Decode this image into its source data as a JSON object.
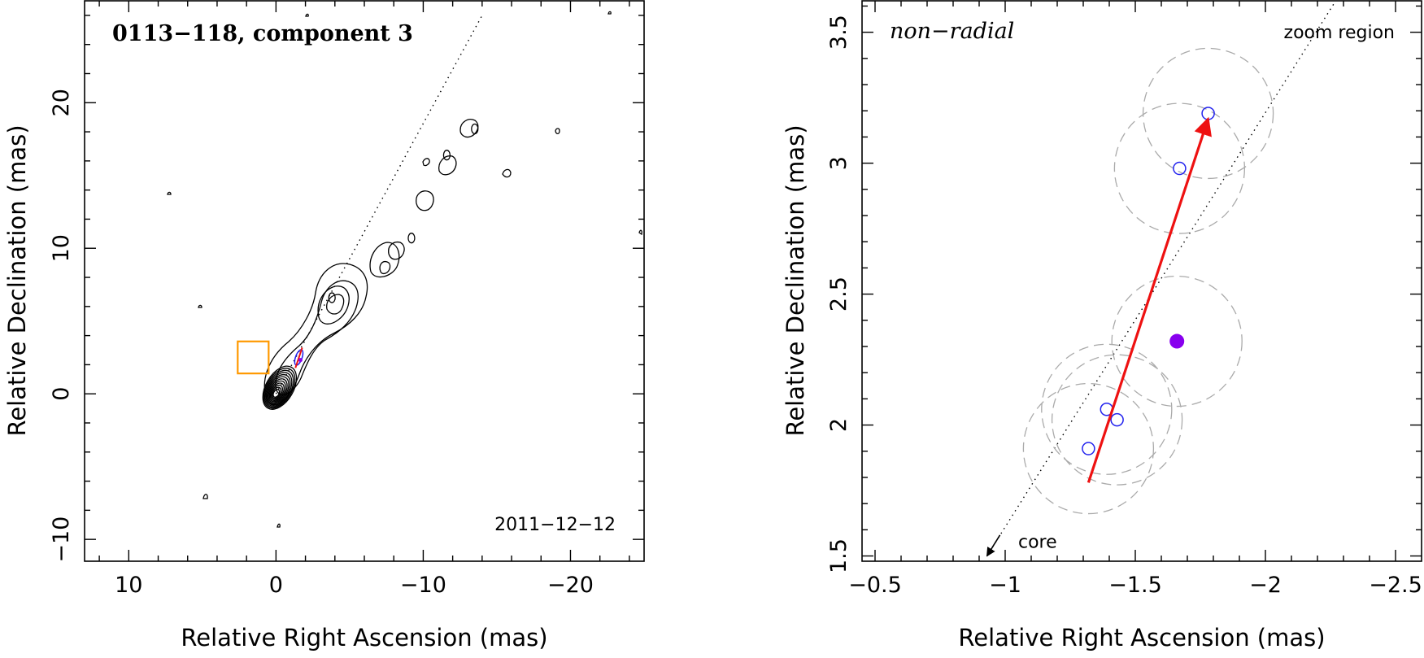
{
  "chart_data": [
    {
      "type": "contour",
      "title": "0113−118, component 3",
      "annotation": "2011−12−12",
      "xlabel": "Relative Right Ascension (mas)",
      "ylabel": "Relative Declination (mas)",
      "xlim": [
        13,
        -25
      ],
      "ylim": [
        -11.5,
        27
      ],
      "xticks": [
        10,
        0,
        -10,
        -20
      ],
      "yticks": [
        -10,
        0,
        10,
        20
      ],
      "xtick_labels": [
        "10",
        "0",
        "−10",
        "−20"
      ],
      "ytick_labels": [
        "−10",
        "0",
        "10",
        "20"
      ],
      "jet_direction_line": [
        [
          0,
          0
        ],
        [
          -14,
          26
        ]
      ],
      "zoom_box": {
        "x": [
          0.5,
          2.6
        ],
        "y": [
          1.4,
          3.6
        ],
        "color": "#ff9900"
      },
      "core_contours": {
        "center": [
          0,
          0
        ],
        "levels": 12
      },
      "knots": [
        {
          "x": -3.8,
          "y": 6.6
        },
        {
          "x": -9.2,
          "y": 10.7
        },
        {
          "x": -11.6,
          "y": 16.4
        },
        {
          "x": -13.5,
          "y": 18.2
        }
      ]
    },
    {
      "type": "scatter",
      "title": "non−radial",
      "annotation": "zoom region",
      "xlabel": "Relative Right Ascension (mas)",
      "ylabel": "Relative Declination (mas)",
      "xlim": [
        -0.45,
        -2.6
      ],
      "ylim": [
        1.48,
        3.62
      ],
      "xticks": [
        -0.5,
        -1,
        -1.5,
        -2,
        -2.5
      ],
      "yticks": [
        1.5,
        2,
        2.5,
        3,
        3.5
      ],
      "xtick_labels": [
        "−0.5",
        "−1",
        "−1.5",
        "−2",
        "−2.5"
      ],
      "ytick_labels": [
        "1.5",
        "2",
        "2.5",
        "3",
        "3.5"
      ],
      "core_label": "core",
      "points": [
        {
          "x": -1.32,
          "y": 1.91
        },
        {
          "x": -1.39,
          "y": 2.06
        },
        {
          "x": -1.43,
          "y": 2.02
        },
        {
          "x": -1.67,
          "y": 2.98
        },
        {
          "x": -1.78,
          "y": 3.19
        }
      ],
      "error_radius": 0.25,
      "mean_position": {
        "x": -1.66,
        "y": 2.32
      },
      "motion_vector": {
        "from": [
          -1.32,
          1.78
        ],
        "to": [
          -1.78,
          3.17
        ]
      },
      "jet_direction_line": {
        "from": [
          -0.93,
          1.5
        ],
        "to": [
          -2.27,
          3.62
        ]
      },
      "colors": {
        "points": "#2222ee",
        "mean": "#8800ee",
        "vector": "#ee1111",
        "zoom_box": "#ff9900"
      }
    }
  ]
}
